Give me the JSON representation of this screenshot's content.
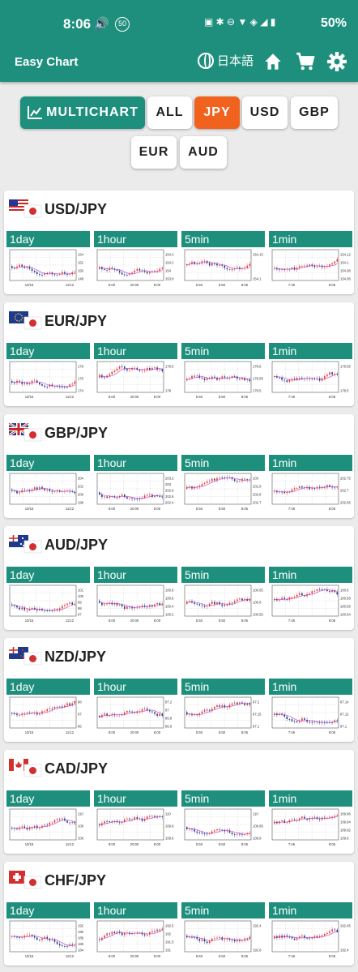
{
  "status": {
    "time": "8:06",
    "battery": "50%"
  },
  "appbar": {
    "title": "Easy Chart",
    "language": "日本語"
  },
  "filters": {
    "multichart": "MULTICHART",
    "buttons": [
      {
        "label": "ALL",
        "active": false
      },
      {
        "label": "JPY",
        "active": true
      },
      {
        "label": "USD",
        "active": false
      },
      {
        "label": "GBP",
        "active": false
      },
      {
        "label": "EUR",
        "active": false
      },
      {
        "label": "AUD",
        "active": false
      }
    ]
  },
  "timeframes": [
    "1day",
    "1hour",
    "5min",
    "1min"
  ],
  "pairs": [
    {
      "label": "USD/JPY",
      "flag": "us",
      "ticks": [
        [
          "154",
          "152",
          "150",
          "148"
        ],
        [
          "154.4",
          "154.2",
          "154",
          "153.8"
        ],
        [
          "154.15",
          "154.1"
        ],
        [
          "154.12",
          "154.1",
          "154.08",
          "154.06"
        ]
      ],
      "xl": [
        [
          "10/15",
          "11/12"
        ],
        [
          "8:00",
          "20:00",
          "8:00"
        ],
        [
          "5:50",
          "6:50",
          "8:05"
        ],
        [
          "7:46",
          "8:06"
        ]
      ]
    },
    {
      "label": "EUR/JPY",
      "flag": "eu",
      "ticks": [
        [
          "178",
          "176",
          "174"
        ],
        [
          "178.5",
          "178"
        ],
        [
          "178.6",
          "178.55",
          "178.5"
        ],
        [
          "178.55",
          "178.5"
        ]
      ],
      "xl": [
        [
          "10/15",
          "11/12"
        ],
        [
          "8:00",
          "20:00",
          "8:00"
        ],
        [
          "5:50",
          "6:50",
          "8:05"
        ],
        [
          "7:46",
          "8:06"
        ]
      ]
    },
    {
      "label": "GBP/JPY",
      "flag": "gb",
      "ticks": [
        [
          "204",
          "202",
          "200",
          "198"
        ],
        [
          "203.2",
          "203",
          "202.8",
          "202.6",
          "202.4"
        ],
        [
          "203",
          "202.9",
          "202.8",
          "202.7"
        ],
        [
          "202.75",
          "202.7",
          "202.65"
        ]
      ],
      "xl": [
        [
          "10/15",
          "11/12"
        ],
        [
          "8:00",
          "20:00",
          "8:00"
        ],
        [
          "5:50",
          "6:50",
          "8:05"
        ],
        [
          "7:46",
          "8:06"
        ]
      ]
    },
    {
      "label": "AUD/JPY",
      "flag": "au",
      "ticks": [
        [
          "101",
          "100",
          "99",
          "98",
          "97"
        ],
        [
          "100.8",
          "100.6",
          "100.4",
          "100.2"
        ],
        [
          "100.65",
          "100.6",
          "100.55"
        ],
        [
          "100.6",
          "100.58",
          "100.56",
          "100.54"
        ]
      ],
      "xl": [
        [
          "10/15",
          "11/12"
        ],
        [
          "8:00",
          "20:00",
          "8:00"
        ],
        [
          "5:50",
          "6:50",
          "8:05"
        ],
        [
          "7:46",
          "8:06"
        ]
      ]
    },
    {
      "label": "NZD/JPY",
      "flag": "nz",
      "ticks": [
        [
          "88",
          "87",
          "86"
        ],
        [
          "87.2",
          "87",
          "86.8",
          "86.6"
        ],
        [
          "87.2",
          "87.15",
          "87.1"
        ],
        [
          "87.14",
          "87.12",
          "87.1"
        ]
      ],
      "xl": [
        [
          "10/15",
          "11/12"
        ],
        [
          "8:00",
          "20:00",
          "8:00"
        ],
        [
          "5:50",
          "6:50",
          "8:05"
        ],
        [
          "7:46",
          "8:06"
        ]
      ]
    },
    {
      "label": "CAD/JPY",
      "flag": "ca",
      "ticks": [
        [
          "110",
          "108",
          "106"
        ],
        [
          "110",
          "109.8",
          "109.6"
        ],
        [
          "110",
          "109.95",
          "109.9"
        ],
        [
          "109.96",
          "109.94",
          "109.92",
          "109.9"
        ]
      ],
      "xl": [
        [
          "10/15",
          "11/12"
        ],
        [
          "8:00",
          "20:00",
          "8:00"
        ],
        [
          "5:50",
          "6:50",
          "8:05"
        ],
        [
          "7:46",
          "8:06"
        ]
      ]
    },
    {
      "label": "CHF/JPY",
      "flag": "ch",
      "ticks": [
        [
          "192",
          "190",
          "188",
          "186",
          "184"
        ],
        [
          "192.5",
          "192",
          "191.5",
          "191"
        ],
        [
          "192.4",
          "192.6"
        ],
        [
          "192.45",
          "192.4"
        ]
      ],
      "xl": [
        [
          "10/15",
          "11/12"
        ],
        [
          "8:00",
          "20:00",
          "8:00"
        ],
        [
          "5:50",
          "6:50",
          "8:05"
        ],
        [
          "7:46",
          "8:06"
        ]
      ]
    }
  ],
  "colors": {
    "teal": "#1f8f7d",
    "orange": "#f2621f",
    "up": "#e53935",
    "down": "#1e3a8a",
    "ma": "#c040c0"
  }
}
